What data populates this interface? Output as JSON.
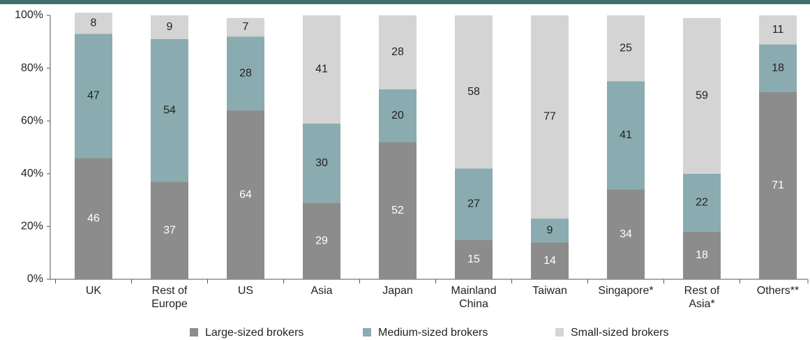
{
  "chart_data": {
    "type": "stacked_bar",
    "categories": [
      "UK",
      "Rest of\nEurope",
      "US",
      "Asia",
      "Japan",
      "Mainland\nChina",
      "Taiwan",
      "Singapore*",
      "Rest of\nAsia*",
      "Others**"
    ],
    "series": [
      {
        "name": "Large-sized brokers",
        "color": "#8c8c8c",
        "values": [
          46,
          37,
          64,
          29,
          52,
          15,
          14,
          34,
          18,
          71
        ]
      },
      {
        "name": "Medium-sized brokers",
        "color": "#8aacb0",
        "values": [
          47,
          54,
          28,
          30,
          20,
          27,
          9,
          41,
          22,
          18
        ]
      },
      {
        "name": "Small-sized brokers",
        "color": "#d4d4d4",
        "values": [
          8,
          9,
          7,
          41,
          28,
          58,
          77,
          25,
          59,
          11
        ]
      }
    ],
    "ylim": [
      0,
      100
    ],
    "yticks": [
      {
        "value": 0,
        "label": "0%"
      },
      {
        "value": 20,
        "label": "20%"
      },
      {
        "value": 40,
        "label": "40%"
      },
      {
        "value": 60,
        "label": "60%"
      },
      {
        "value": 80,
        "label": "80%"
      },
      {
        "value": 100,
        "label": "100%"
      }
    ],
    "legend": "bottom"
  }
}
